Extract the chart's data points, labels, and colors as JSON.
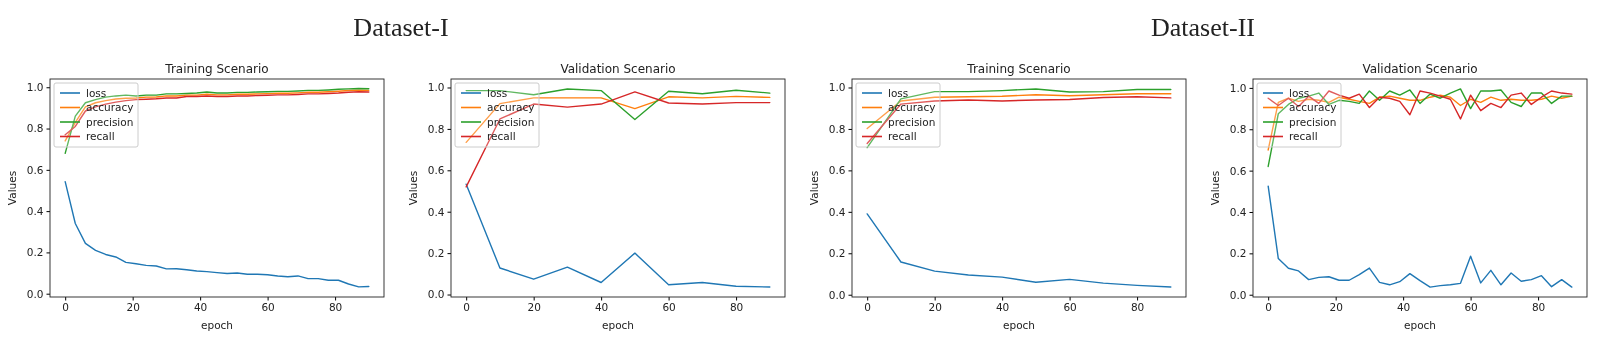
{
  "chart_data": [
    {
      "type": "line",
      "title": "Training Scenario",
      "xlabel": "epoch",
      "ylabel": "Values",
      "annotations": [
        "Dataset-I"
      ],
      "legend": "top left",
      "grid": false,
      "xlim": [
        -4.5,
        94.5
      ],
      "ylim": [
        -0.016,
        1.04
      ],
      "xticks": [
        0,
        20,
        40,
        60,
        80
      ],
      "yticks": [
        {
          "value": 0,
          "label": "0.0"
        },
        {
          "value": 0.2,
          "label": "0.2"
        },
        {
          "value": 0.4,
          "label": "0.4"
        },
        {
          "value": 0.6,
          "label": "0.6"
        },
        {
          "value": 0.8,
          "label": "0.8"
        },
        {
          "value": 1,
          "label": "1.0"
        }
      ],
      "x": [
        0,
        3,
        6,
        9,
        12,
        15,
        18,
        21,
        24,
        27,
        30,
        33,
        36,
        39,
        42,
        45,
        48,
        51,
        54,
        57,
        60,
        63,
        66,
        69,
        72,
        75,
        78,
        81,
        84,
        87,
        90
      ],
      "series": [
        {
          "name": "loss",
          "color": "#1f77b4",
          "values": [
            0.543,
            0.34,
            0.244,
            0.21,
            0.19,
            0.178,
            0.152,
            0.145,
            0.137,
            0.134,
            0.12,
            0.121,
            0.116,
            0.11,
            0.107,
            0.102,
            0.098,
            0.1,
            0.094,
            0.094,
            0.092,
            0.086,
            0.082,
            0.086,
            0.073,
            0.073,
            0.065,
            0.065,
            0.047,
            0.033,
            0.035
          ]
        },
        {
          "name": "accuracy",
          "color": "#ff7f0e",
          "values": [
            0.74,
            0.83,
            0.905,
            0.925,
            0.935,
            0.943,
            0.947,
            0.948,
            0.952,
            0.953,
            0.958,
            0.958,
            0.962,
            0.962,
            0.966,
            0.963,
            0.963,
            0.966,
            0.966,
            0.968,
            0.969,
            0.971,
            0.971,
            0.973,
            0.976,
            0.976,
            0.978,
            0.981,
            0.984,
            0.986,
            0.985
          ]
        },
        {
          "name": "precision",
          "color": "#2ca02c",
          "values": [
            0.68,
            0.86,
            0.925,
            0.94,
            0.952,
            0.958,
            0.962,
            0.958,
            0.962,
            0.962,
            0.968,
            0.968,
            0.97,
            0.972,
            0.977,
            0.972,
            0.972,
            0.975,
            0.975,
            0.977,
            0.978,
            0.98,
            0.98,
            0.982,
            0.985,
            0.985,
            0.987,
            0.99,
            0.992,
            0.994,
            0.993
          ]
        },
        {
          "name": "recall",
          "color": "#d62728",
          "values": [
            0.77,
            0.81,
            0.885,
            0.905,
            0.918,
            0.928,
            0.935,
            0.94,
            0.942,
            0.944,
            0.948,
            0.948,
            0.955,
            0.955,
            0.958,
            0.955,
            0.955,
            0.958,
            0.958,
            0.96,
            0.961,
            0.963,
            0.963,
            0.965,
            0.968,
            0.968,
            0.97,
            0.972,
            0.976,
            0.978,
            0.977
          ]
        }
      ]
    },
    {
      "type": "line",
      "title": "Validation Scenario",
      "xlabel": "epoch",
      "ylabel": "Values",
      "legend": "top left",
      "grid": false,
      "xlim": [
        -4.5,
        94.5
      ],
      "ylim": [
        -0.012,
        1.041
      ],
      "xticks": [
        0,
        20,
        40,
        60,
        80
      ],
      "yticks": [
        {
          "value": 0,
          "label": "0.0"
        },
        {
          "value": 0.2,
          "label": "0.2"
        },
        {
          "value": 0.4,
          "label": "0.4"
        },
        {
          "value": 0.6,
          "label": "0.6"
        },
        {
          "value": 0.8,
          "label": "0.8"
        },
        {
          "value": 1,
          "label": "1.0"
        }
      ],
      "x": [
        0,
        10,
        20,
        30,
        40,
        50,
        60,
        70,
        80,
        90
      ],
      "series": [
        {
          "name": "loss",
          "color": "#1f77b4",
          "values": [
            0.533,
            0.128,
            0.074,
            0.132,
            0.058,
            0.2,
            0.047,
            0.058,
            0.04,
            0.036
          ]
        },
        {
          "name": "accuracy",
          "color": "#ff7f0e",
          "values": [
            0.735,
            0.922,
            0.95,
            0.95,
            0.95,
            0.898,
            0.955,
            0.95,
            0.957,
            0.952
          ]
        },
        {
          "name": "precision",
          "color": "#2ca02c",
          "values": [
            0.985,
            0.985,
            0.965,
            0.993,
            0.985,
            0.845,
            0.982,
            0.97,
            0.987,
            0.973
          ]
        },
        {
          "name": "recall",
          "color": "#d62728",
          "values": [
            0.52,
            0.848,
            0.92,
            0.905,
            0.92,
            0.979,
            0.925,
            0.92,
            0.927,
            0.927
          ]
        }
      ]
    },
    {
      "type": "line",
      "title": "Training Scenario",
      "xlabel": "epoch",
      "ylabel": "Values",
      "annotations": [
        "Dataset-II"
      ],
      "legend": "top left",
      "grid": false,
      "xlim": [
        -4.5,
        94.5
      ],
      "ylim": [
        -0.011,
        1.041
      ],
      "xticks": [
        0,
        20,
        40,
        60,
        80
      ],
      "yticks": [
        {
          "value": 0,
          "label": "0.0"
        },
        {
          "value": 0.2,
          "label": "0.2"
        },
        {
          "value": 0.4,
          "label": "0.4"
        },
        {
          "value": 0.6,
          "label": "0.6"
        },
        {
          "value": 0.8,
          "label": "0.8"
        },
        {
          "value": 1,
          "label": "1.0"
        }
      ],
      "x": [
        0,
        10,
        20,
        30,
        40,
        50,
        60,
        70,
        80,
        90
      ],
      "series": [
        {
          "name": "loss",
          "color": "#1f77b4",
          "values": [
            0.39,
            0.158,
            0.114,
            0.095,
            0.085,
            0.06,
            0.074,
            0.056,
            0.045,
            0.037
          ]
        },
        {
          "name": "accuracy",
          "color": "#ff7f0e",
          "values": [
            0.802,
            0.935,
            0.953,
            0.955,
            0.958,
            0.965,
            0.96,
            0.965,
            0.97,
            0.97
          ]
        },
        {
          "name": "precision",
          "color": "#2ca02c",
          "values": [
            0.71,
            0.945,
            0.98,
            0.98,
            0.985,
            0.993,
            0.978,
            0.98,
            0.99,
            0.99
          ]
        },
        {
          "name": "recall",
          "color": "#d62728",
          "values": [
            0.73,
            0.92,
            0.935,
            0.94,
            0.935,
            0.94,
            0.942,
            0.952,
            0.955,
            0.95
          ]
        }
      ]
    },
    {
      "type": "line",
      "title": "Validation Scenario",
      "xlabel": "epoch",
      "ylabel": "Values",
      "legend": "top left",
      "grid": false,
      "xlim": [
        -4.5,
        94.5
      ],
      "ylim": [
        -0.011,
        1.043
      ],
      "xticks": [
        0,
        20,
        40,
        60,
        80
      ],
      "yticks": [
        {
          "value": 0,
          "label": "0.0"
        },
        {
          "value": 0.2,
          "label": "0.2"
        },
        {
          "value": 0.4,
          "label": "0.4"
        },
        {
          "value": 0.6,
          "label": "0.6"
        },
        {
          "value": 0.8,
          "label": "0.8"
        },
        {
          "value": 1,
          "label": "1.0"
        }
      ],
      "x": [
        0,
        3,
        6,
        9,
        12,
        15,
        18,
        21,
        24,
        27,
        30,
        33,
        36,
        39,
        42,
        45,
        48,
        51,
        54,
        57,
        60,
        63,
        66,
        69,
        72,
        75,
        78,
        81,
        84,
        87,
        90
      ],
      "series": [
        {
          "name": "loss",
          "color": "#1f77b4",
          "values": [
            0.525,
            0.175,
            0.128,
            0.115,
            0.073,
            0.084,
            0.087,
            0.07,
            0.07,
            0.097,
            0.129,
            0.06,
            0.048,
            0.063,
            0.102,
            0.068,
            0.037,
            0.044,
            0.048,
            0.055,
            0.186,
            0.057,
            0.118,
            0.048,
            0.105,
            0.065,
            0.073,
            0.092,
            0.039,
            0.073,
            0.037
          ]
        },
        {
          "name": "accuracy",
          "color": "#ff7f0e",
          "values": [
            0.7,
            0.93,
            0.95,
            0.935,
            0.945,
            0.94,
            0.93,
            0.955,
            0.945,
            0.935,
            0.925,
            0.955,
            0.96,
            0.95,
            0.94,
            0.94,
            0.955,
            0.965,
            0.955,
            0.915,
            0.945,
            0.93,
            0.955,
            0.94,
            0.945,
            0.94,
            0.94,
            0.945,
            0.96,
            0.95,
            0.96
          ]
        },
        {
          "name": "precision",
          "color": "#2ca02c",
          "values": [
            0.62,
            0.875,
            0.92,
            0.95,
            0.96,
            0.975,
            0.92,
            0.94,
            0.935,
            0.925,
            0.985,
            0.94,
            0.985,
            0.965,
            0.99,
            0.925,
            0.97,
            0.95,
            0.975,
            0.995,
            0.9,
            0.985,
            0.985,
            0.99,
            0.93,
            0.91,
            0.975,
            0.975,
            0.925,
            0.96,
            0.96
          ]
        },
        {
          "name": "recall",
          "color": "#d62728",
          "values": [
            0.95,
            0.915,
            0.95,
            0.91,
            0.96,
            0.925,
            0.985,
            0.965,
            0.95,
            0.97,
            0.905,
            0.955,
            0.95,
            0.935,
            0.87,
            0.985,
            0.975,
            0.96,
            0.945,
            0.85,
            0.965,
            0.89,
            0.925,
            0.905,
            0.965,
            0.975,
            0.92,
            0.955,
            0.985,
            0.975,
            0.97
          ]
        }
      ]
    }
  ]
}
